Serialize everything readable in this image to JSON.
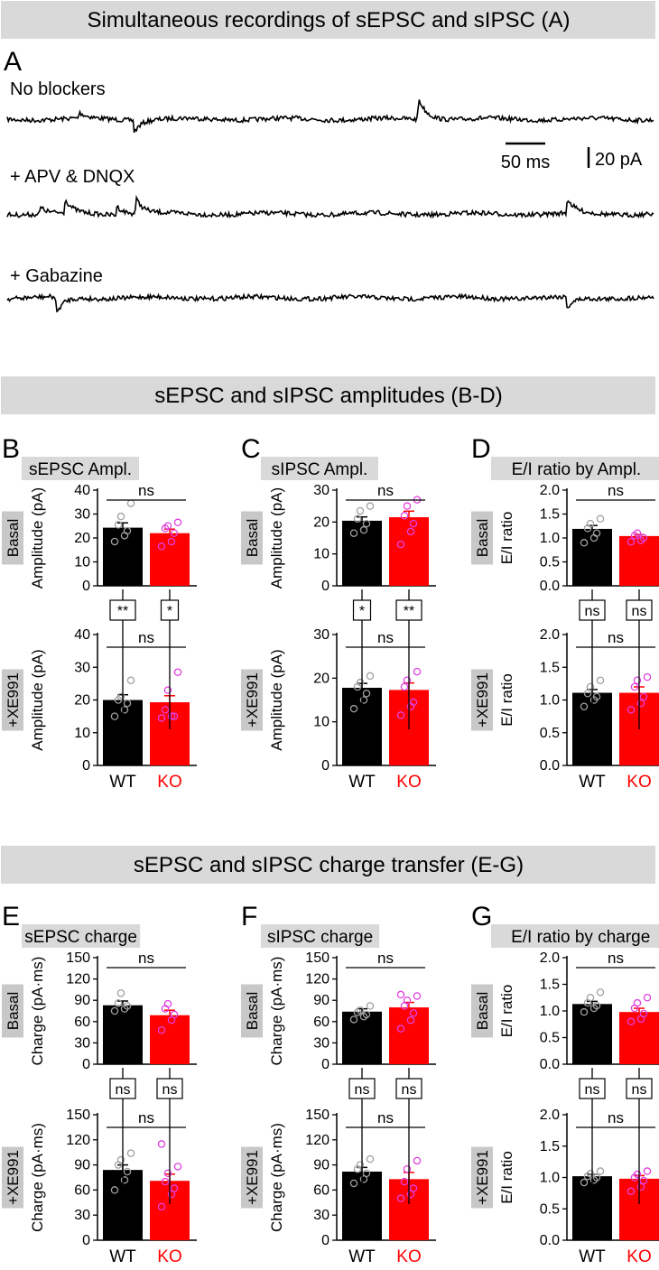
{
  "sections": [
    {
      "title": "Simultaneous recordings of sEPSC and sIPSC (A)"
    },
    {
      "title": "sEPSC and sIPSC amplitudes (B-D)"
    },
    {
      "title": "sEPSC and sIPSC charge transfer (E-G)"
    }
  ],
  "panel_a": {
    "letter": "A",
    "traces": [
      {
        "label": "No blockers",
        "events": [
          {
            "t": 0.11,
            "a": 7,
            "w": 0.012
          },
          {
            "t": 0.195,
            "a": -16,
            "w": 0.01
          },
          {
            "t": 0.635,
            "a": 26,
            "w": 0.013
          }
        ]
      },
      {
        "label": "+ APV & DNQX",
        "events": [
          {
            "t": 0.05,
            "a": 9,
            "w": 0.01
          },
          {
            "t": 0.088,
            "a": 17,
            "w": 0.012
          },
          {
            "t": 0.168,
            "a": 11,
            "w": 0.012
          },
          {
            "t": 0.198,
            "a": 19,
            "w": 0.012
          },
          {
            "t": 0.865,
            "a": 18,
            "w": 0.012
          }
        ]
      },
      {
        "label": "+ Gabazine",
        "events": [
          {
            "t": 0.075,
            "a": -22,
            "w": 0.01
          },
          {
            "t": 0.865,
            "a": -15,
            "w": 0.01
          }
        ]
      }
    ],
    "scale_time": "50 ms",
    "scale_amp": "20 pA"
  },
  "row_labels": {
    "basal": "Basal",
    "xe991": "+XE991"
  },
  "groups": [
    "WT",
    "KO"
  ],
  "colors": {
    "wt": "#000000",
    "ko": "#ff0000",
    "wt_dots": "#a0a0a0",
    "ko_dots": "#e040e0",
    "title_bg": "#d9d9d9",
    "label_bg": "#c8c8c8"
  },
  "chart_data": [
    {
      "panel": "B",
      "title": "sEPSC Ampl.",
      "type": "bar",
      "ylabel": "Amplitude (pA)",
      "ylim": [
        0,
        40
      ],
      "yticks": [
        0,
        10,
        20,
        30,
        40
      ],
      "basal": {
        "WT": 24.3,
        "KO": 22.0,
        "wt_sem": 2.0,
        "ko_sem": 1.7,
        "wt_points": [
          18.5,
          21.0,
          23.0,
          25.5,
          29.0,
          34.5
        ],
        "ko_points": [
          16.5,
          18.5,
          22.0,
          24.0,
          25.0,
          26.5
        ],
        "sig": "ns"
      },
      "xe991": {
        "WT": 20.0,
        "KO": 19.3,
        "wt_sem": 1.6,
        "ko_sem": 2.0,
        "wt_points": [
          15.0,
          17.0,
          19.0,
          20.0,
          21.0,
          26.0
        ],
        "ko_points": [
          14.5,
          15.0,
          15.0,
          17.0,
          23.0,
          28.5
        ],
        "sig": "ns"
      },
      "vertical_sig": {
        "WT": "**",
        "KO": "*"
      }
    },
    {
      "panel": "C",
      "title": "sIPSC Ampl.",
      "type": "bar",
      "ylabel": "Amplitude (pA)",
      "ylim": [
        0,
        30
      ],
      "yticks": [
        0,
        10,
        20,
        30
      ],
      "basal": {
        "WT": 20.4,
        "KO": 21.5,
        "wt_sem": 1.2,
        "ko_sem": 1.9,
        "wt_points": [
          16.5,
          17.5,
          19.5,
          21.0,
          23.5,
          25.0
        ],
        "ko_points": [
          13.0,
          17.0,
          19.5,
          22.0,
          25.0,
          27.0
        ],
        "sig": "ns"
      },
      "xe991": {
        "WT": 17.8,
        "KO": 17.3,
        "wt_sem": 1.0,
        "ko_sem": 1.6,
        "wt_points": [
          13.0,
          15.0,
          16.5,
          18.0,
          19.0,
          20.5
        ],
        "ko_points": [
          11.5,
          13.5,
          14.5,
          18.0,
          19.5,
          21.5
        ],
        "sig": "ns"
      },
      "vertical_sig": {
        "WT": "*",
        "KO": "**"
      }
    },
    {
      "panel": "D",
      "title": "E/I ratio by Ampl.",
      "type": "bar",
      "ylabel": "E/I ratio",
      "ylim": [
        0,
        2
      ],
      "yticks": [
        0.0,
        0.5,
        1.0,
        1.5,
        2.0
      ],
      "basal": {
        "WT": 1.19,
        "KO": 1.04,
        "wt_sem": 0.07,
        "ko_sem": 0.03,
        "wt_points": [
          0.9,
          1.0,
          1.1,
          1.2,
          1.3,
          1.4
        ],
        "ko_points": [
          0.92,
          0.95,
          1.0,
          1.05,
          1.1
        ],
        "sig": "ns"
      },
      "xe991": {
        "WT": 1.11,
        "KO": 1.11,
        "wt_sem": 0.05,
        "ko_sem": 0.09,
        "wt_points": [
          0.9,
          1.0,
          1.05,
          1.1,
          1.2,
          1.3
        ],
        "ko_points": [
          0.85,
          0.95,
          1.05,
          1.2,
          1.3,
          1.35
        ],
        "sig": "ns"
      },
      "vertical_sig": {
        "WT": "ns",
        "KO": "ns"
      }
    },
    {
      "panel": "E",
      "title": "sEPSC charge",
      "type": "bar",
      "ylabel": "Charge (pA·ms)",
      "ylim": [
        0,
        150
      ],
      "yticks": [
        0,
        30,
        60,
        90,
        120,
        150
      ],
      "basal": {
        "WT": 83,
        "KO": 69,
        "wt_sem": 6,
        "ko_sem": 7,
        "wt_points": [
          75,
          78,
          82,
          86,
          100
        ],
        "ko_points": [
          48,
          62,
          70,
          78,
          85
        ],
        "sig": "ns"
      },
      "xe991": {
        "WT": 84,
        "KO": 71,
        "wt_sem": 6,
        "ko_sem": 8,
        "wt_points": [
          60,
          72,
          82,
          90,
          96,
          104
        ],
        "ko_points": [
          40,
          55,
          62,
          70,
          80,
          88,
          115
        ],
        "sig": "ns"
      },
      "vertical_sig": {
        "WT": "ns",
        "KO": "ns"
      }
    },
    {
      "panel": "F",
      "title": "sIPSC charge",
      "type": "bar",
      "ylabel": "Charge (pA·ms)",
      "ylim": [
        0,
        150
      ],
      "yticks": [
        0,
        30,
        60,
        90,
        120,
        150
      ],
      "basal": {
        "WT": 74,
        "KO": 80,
        "wt_sem": 4,
        "ko_sem": 7,
        "wt_points": [
          63,
          67,
          70,
          73,
          76,
          82
        ],
        "ko_points": [
          50,
          62,
          72,
          82,
          90,
          96,
          98
        ],
        "sig": "ns"
      },
      "xe991": {
        "WT": 82,
        "KO": 73,
        "wt_sem": 5,
        "ko_sem": 8,
        "wt_points": [
          68,
          73,
          80,
          85,
          90,
          97
        ],
        "ko_points": [
          50,
          55,
          62,
          70,
          85,
          95
        ],
        "sig": "ns"
      },
      "vertical_sig": {
        "WT": "ns",
        "KO": "ns"
      }
    },
    {
      "panel": "G",
      "title": "E/I ratio by charge",
      "type": "bar",
      "ylabel": "E/I ratio",
      "ylim": [
        0,
        2
      ],
      "yticks": [
        0.0,
        0.5,
        1.0,
        1.5,
        2.0
      ],
      "basal": {
        "WT": 1.13,
        "KO": 0.98,
        "wt_sem": 0.05,
        "ko_sem": 0.07,
        "wt_points": [
          0.98,
          1.05,
          1.1,
          1.15,
          1.25,
          1.35
        ],
        "ko_points": [
          0.8,
          0.85,
          0.95,
          1.05,
          1.15,
          1.25
        ],
        "sig": "ns"
      },
      "xe991": {
        "WT": 1.02,
        "KO": 0.98,
        "wt_sem": 0.03,
        "ko_sem": 0.05,
        "wt_points": [
          0.92,
          0.96,
          1.0,
          1.02,
          1.06,
          1.1
        ],
        "ko_points": [
          0.78,
          0.85,
          0.95,
          1.0,
          1.05,
          1.1
        ],
        "sig": "ns"
      },
      "vertical_sig": {
        "WT": "ns",
        "KO": "ns"
      }
    }
  ]
}
